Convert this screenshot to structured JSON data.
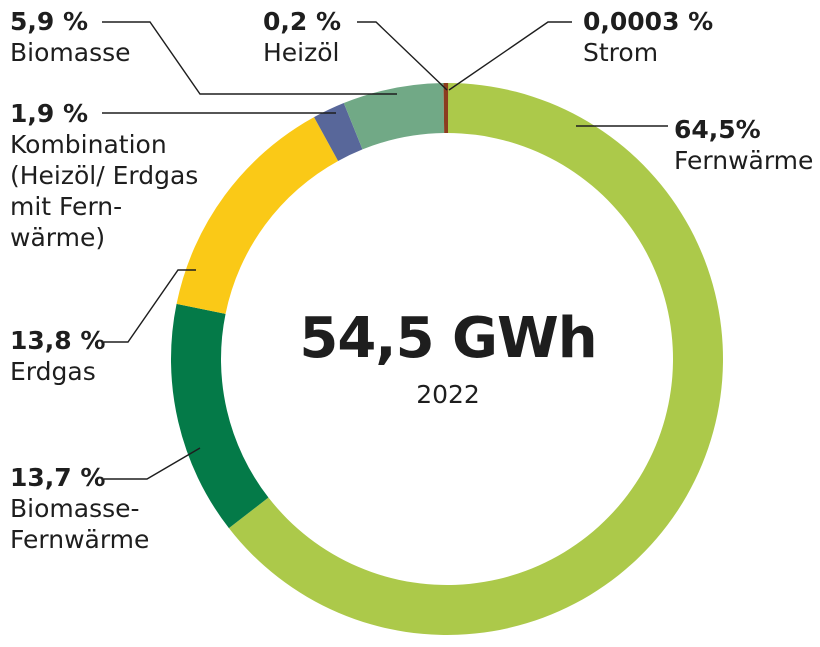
{
  "chart_data": {
    "type": "pie",
    "center": {
      "total": "54,5 GWh",
      "year": "2022"
    },
    "slices": [
      {
        "label": "Fernwärme",
        "value": 64.5,
        "display": "64,5%",
        "color": "#acc94a"
      },
      {
        "label": "Biomasse-Fernwärme",
        "value": 13.7,
        "display": "13,7 %",
        "color": "#047a48"
      },
      {
        "label": "Erdgas",
        "value": 13.8,
        "display": "13,8 %",
        "color": "#fac917"
      },
      {
        "label": "Kombination (Heizöl/ Erdgas mit Fernwärme)",
        "value": 1.9,
        "display": "1,9 %",
        "color": "#58679a"
      },
      {
        "label": "Biomasse",
        "value": 5.9,
        "display": "5,9 %",
        "color": "#71a986"
      },
      {
        "label": "Heizöl",
        "value": 0.2,
        "display": "0,2 %",
        "color": "#8b3d1f"
      },
      {
        "label": "Strom",
        "value": 0.0003,
        "display": "0,0003 %",
        "color": "#8b3d1f"
      }
    ],
    "labels": {
      "fernwaerme": {
        "pct": "64,5%",
        "name": [
          "Fernwärme"
        ]
      },
      "biomasse_fernwaerme": {
        "pct": "13,7 %",
        "name": [
          "Biomasse-",
          "Fernwärme"
        ]
      },
      "erdgas": {
        "pct": "13,8 %",
        "name": [
          "Erdgas"
        ]
      },
      "kombination": {
        "pct": "1,9 %",
        "name": [
          "Kombination",
          "(Heizöl/ Erdgas",
          "mit Fern-",
          "wärme)"
        ]
      },
      "biomasse": {
        "pct": "5,9 %",
        "name": [
          "Biomasse"
        ]
      },
      "heizoel": {
        "pct": "0,2 %",
        "name": [
          "Heizöl"
        ]
      },
      "strom": {
        "pct": "0,0003 %",
        "name": [
          "Strom"
        ]
      }
    }
  }
}
